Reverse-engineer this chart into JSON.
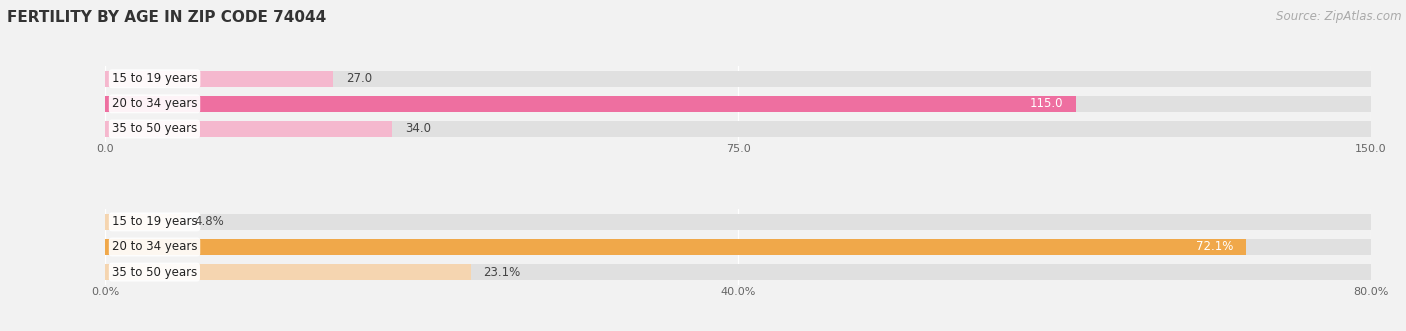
{
  "title": "Female Fertility by Age in Zip Code 74044",
  "title_display": "FERTILITY BY AGE IN ZIP CODE 74044",
  "source": "Source: ZipAtlas.com",
  "top_chart": {
    "categories": [
      "15 to 19 years",
      "20 to 34 years",
      "35 to 50 years"
    ],
    "values": [
      27.0,
      115.0,
      34.0
    ],
    "xlim": [
      0,
      150.0
    ],
    "xticks": [
      0.0,
      75.0,
      150.0
    ],
    "xtick_labels": [
      "0.0",
      "75.0",
      "150.0"
    ],
    "bar_colors": [
      "#f5b8ce",
      "#ee6fa0",
      "#f5b8ce"
    ],
    "label_colors": [
      "#555555",
      "#ffffff",
      "#555555"
    ],
    "label_inside": [
      false,
      true,
      false
    ],
    "value_labels": [
      "27.0",
      "115.0",
      "34.0"
    ]
  },
  "bottom_chart": {
    "categories": [
      "15 to 19 years",
      "20 to 34 years",
      "35 to 50 years"
    ],
    "values": [
      4.8,
      72.1,
      23.1
    ],
    "xlim": [
      0,
      80.0
    ],
    "xticks": [
      0.0,
      40.0,
      80.0
    ],
    "xtick_labels": [
      "0.0%",
      "40.0%",
      "80.0%"
    ],
    "bar_colors": [
      "#f5d5b0",
      "#f0a84a",
      "#f5d5b0"
    ],
    "label_colors": [
      "#555555",
      "#ffffff",
      "#555555"
    ],
    "label_inside": [
      false,
      true,
      false
    ],
    "value_labels": [
      "4.8%",
      "72.1%",
      "23.1%"
    ]
  },
  "fig_bg_color": "#f2f2f2",
  "bar_bg_color": "#e0e0e0",
  "bar_height": 0.62,
  "bar_spacing": 1.0,
  "title_fontsize": 11,
  "source_fontsize": 8.5,
  "axis_fontsize": 8,
  "label_fontsize": 8.5,
  "category_fontsize": 8.5
}
